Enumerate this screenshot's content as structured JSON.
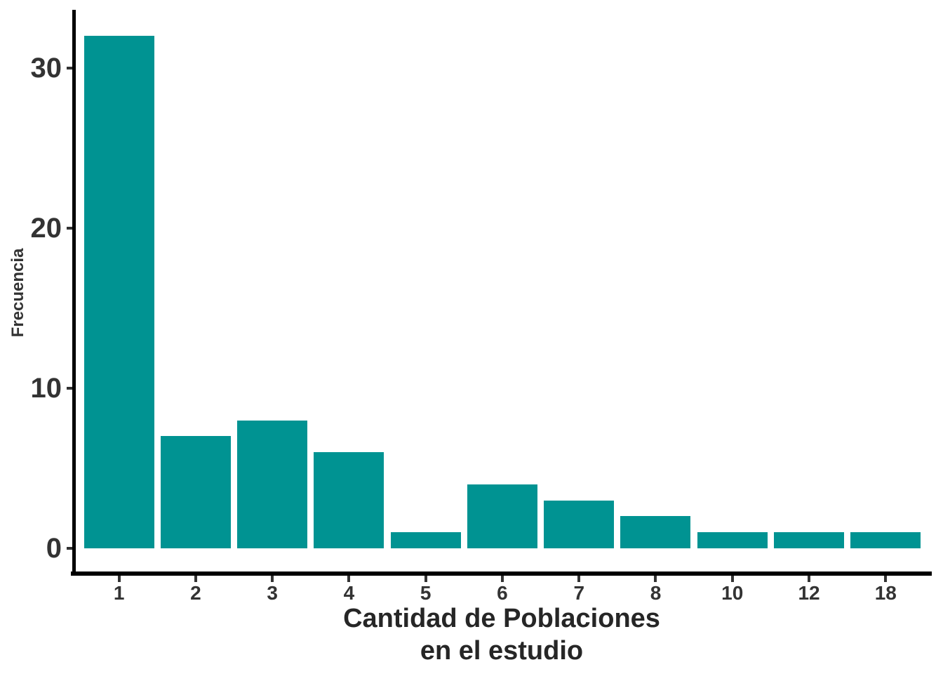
{
  "chart_data": {
    "type": "bar",
    "categories": [
      "1",
      "2",
      "3",
      "4",
      "5",
      "6",
      "7",
      "8",
      "10",
      "12",
      "18"
    ],
    "values": [
      32,
      7,
      8,
      6,
      1,
      4,
      3,
      2,
      1,
      1,
      1
    ],
    "title": "",
    "xlabel": "Cantidad de Poblaciones en el estudio",
    "xlabel_lines": [
      "Cantidad de Poblaciones",
      "en el estudio"
    ],
    "ylabel": "Frecuencia",
    "ylim": [
      0,
      32
    ],
    "yticks": [
      0,
      10,
      20,
      30
    ],
    "grid": false,
    "legend": false,
    "bar_color": "#009392",
    "axis_color": "#000000",
    "tick_text_color": "#333333",
    "title_color": "#262626"
  }
}
